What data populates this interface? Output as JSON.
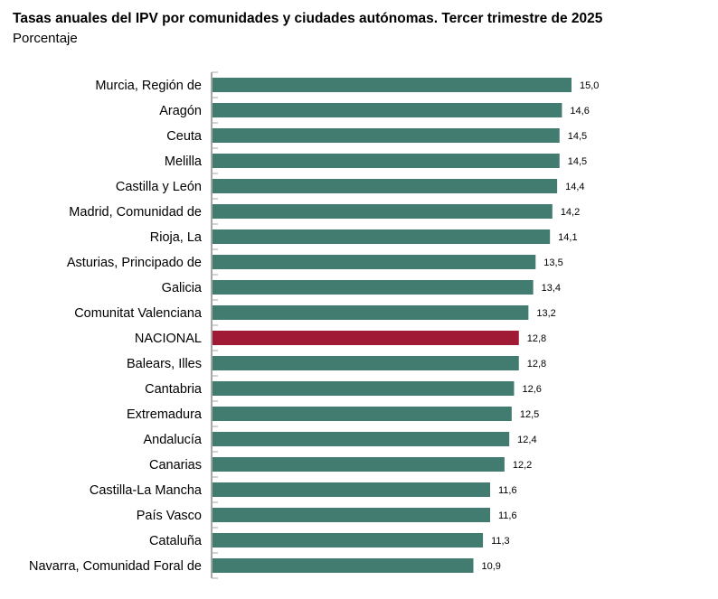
{
  "chart_data": {
    "type": "bar",
    "orientation": "horizontal",
    "title": "Tasas anuales del IPV por comunidades y ciudades autónomas. Tercer trimestre de 2025",
    "subtitle": "Porcentaje",
    "categories": [
      "Murcia, Región de",
      "Aragón",
      "Ceuta",
      "Melilla",
      "Castilla y León",
      "Madrid, Comunidad de",
      "Rioja, La",
      "Asturias, Principado de",
      "Galicia",
      "Comunitat Valenciana",
      "NACIONAL",
      "Balears, Illes",
      "Cantabria",
      "Extremadura",
      "Andalucía",
      "Canarias",
      "Castilla-La Mancha",
      "País Vasco",
      "Cataluña",
      "Navarra, Comunidad Foral de"
    ],
    "values": [
      15.0,
      14.6,
      14.5,
      14.5,
      14.4,
      14.2,
      14.1,
      13.5,
      13.4,
      13.2,
      12.8,
      12.8,
      12.6,
      12.5,
      12.4,
      12.2,
      11.6,
      11.6,
      11.3,
      10.9
    ],
    "value_labels": [
      "15,0",
      "14,6",
      "14,5",
      "14,5",
      "14,4",
      "14,2",
      "14,1",
      "13,5",
      "13,4",
      "13,2",
      "12,8",
      "12,8",
      "12,6",
      "12,5",
      "12,4",
      "12,2",
      "11,6",
      "11,6",
      "11,3",
      "10,9"
    ],
    "highlight": "NACIONAL",
    "xlim": [
      0,
      15
    ],
    "grid": false,
    "colors": {
      "bar": "#427c70",
      "highlight": "#a01a35",
      "axis": "#888888"
    }
  }
}
